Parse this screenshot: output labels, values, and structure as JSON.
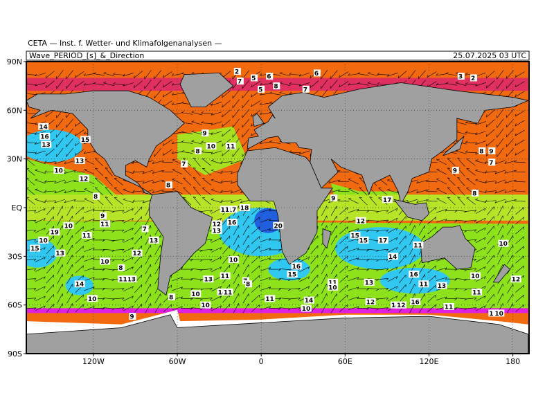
{
  "header": {
    "source": "CETA — Inst. f. Wetter- und Klimafolgenanalysen —",
    "title": "Wave_PERIOD_[s]_&_Direction",
    "date": "25.07.2025 03 UTC"
  },
  "map": {
    "xlim": [
      -168,
      191.6
    ],
    "ylim": [
      -90,
      90
    ],
    "xticks": [
      {
        "value": -120,
        "label": "120W"
      },
      {
        "value": -60,
        "label": "60W"
      },
      0,
      {
        "value": 60,
        "label": "60E"
      },
      {
        "value": 120,
        "label": "120E"
      },
      {
        "value": 180,
        "label": "180"
      }
    ],
    "yticks": [
      {
        "value": 90,
        "label": "90N"
      },
      {
        "value": 60,
        "label": "60N"
      },
      {
        "value": 30,
        "label": "30N"
      },
      {
        "value": 0,
        "label": "EQ"
      },
      {
        "value": -30,
        "label": "30S"
      },
      {
        "value": -60,
        "label": "60S"
      },
      {
        "value": -90,
        "label": "90S"
      }
    ],
    "labels": [
      {
        "lon": -157,
        "lat": 50,
        "value": 14
      },
      {
        "lon": -156,
        "lat": 44,
        "value": 16
      },
      {
        "lon": -155,
        "lat": 39,
        "value": 13
      },
      {
        "lon": -127,
        "lat": 42,
        "value": 15
      },
      {
        "lon": -146,
        "lat": 23,
        "value": 10
      },
      {
        "lon": -131,
        "lat": 29,
        "value": 13
      },
      {
        "lon": -128,
        "lat": 18,
        "value": 12
      },
      {
        "lon": -118,
        "lat": 7,
        "value": 8
      },
      {
        "lon": -139,
        "lat": -11,
        "value": 10
      },
      {
        "lon": -113,
        "lat": -5,
        "value": 9
      },
      {
        "lon": -113,
        "lat": -10,
        "value": 11
      },
      {
        "lon": -149,
        "lat": -15,
        "value": 19
      },
      {
        "lon": -157,
        "lat": -20,
        "value": 10
      },
      {
        "lon": -163,
        "lat": -25,
        "value": 15
      },
      {
        "lon": -145,
        "lat": -28,
        "value": 13
      },
      {
        "lon": -126,
        "lat": -17,
        "value": 11
      },
      {
        "lon": -113,
        "lat": -33,
        "value": 10
      },
      {
        "lon": -100,
        "lat": -37,
        "value": 8
      },
      {
        "lon": -94,
        "lat": -44,
        "value": 13
      },
      {
        "lon": -100,
        "lat": -44,
        "value": 11
      },
      {
        "lon": -90,
        "lat": -28,
        "value": 12
      },
      {
        "lon": -83,
        "lat": -13,
        "value": 7
      },
      {
        "lon": -78,
        "lat": -20,
        "value": 13
      },
      {
        "lon": -131,
        "lat": -47,
        "value": 14
      },
      {
        "lon": -122,
        "lat": -56,
        "value": 10
      },
      {
        "lon": -92,
        "lat": -67,
        "value": 9
      },
      {
        "lon": -64,
        "lat": -55,
        "value": 8
      },
      {
        "lon": -48,
        "lat": -53,
        "value": 10
      },
      {
        "lon": -41,
        "lat": -60,
        "value": 10
      },
      {
        "lon": -39,
        "lat": -44,
        "value": 13
      },
      {
        "lon": -27,
        "lat": -42,
        "value": 11
      },
      {
        "lon": -29,
        "lat": -52,
        "value": 14
      },
      {
        "lon": -25,
        "lat": -52,
        "value": 11
      },
      {
        "lon": -21,
        "lat": -32,
        "value": 10
      },
      {
        "lon": -11,
        "lat": -45,
        "value": 7
      },
      {
        "lon": -9,
        "lat": -47,
        "value": 8
      },
      {
        "lon": 5,
        "lat": -56,
        "value": 11
      },
      {
        "lon": 33,
        "lat": -57,
        "value": 14
      },
      {
        "lon": 31,
        "lat": -62,
        "value": 10
      },
      {
        "lon": 24,
        "lat": -36,
        "value": 16
      },
      {
        "lon": 21,
        "lat": -41,
        "value": 15
      },
      {
        "lon": 11,
        "lat": -11,
        "value": 20
      },
      {
        "lon": -13,
        "lat": 0,
        "value": 18
      },
      {
        "lon": -22,
        "lat": -1,
        "value": 17
      },
      {
        "lon": -27,
        "lat": -1,
        "value": 11
      },
      {
        "lon": -22,
        "lat": -9,
        "value": 16
      },
      {
        "lon": -33,
        "lat": -10,
        "value": 12
      },
      {
        "lon": -33,
        "lat": -14,
        "value": 13
      },
      {
        "lon": -40,
        "lat": 46,
        "value": 9
      },
      {
        "lon": -37,
        "lat": 38,
        "value": 10
      },
      {
        "lon": -23,
        "lat": 38,
        "value": 11
      },
      {
        "lon": -45,
        "lat": 35,
        "value": 8
      },
      {
        "lon": -55,
        "lat": 27,
        "value": 7
      },
      {
        "lon": -17,
        "lat": 84,
        "value": 2
      },
      {
        "lon": -15,
        "lat": 78,
        "value": 7
      },
      {
        "lon": -5,
        "lat": 80,
        "value": 5
      },
      {
        "lon": 0,
        "lat": 73,
        "value": 5
      },
      {
        "lon": 6,
        "lat": 81,
        "value": 6
      },
      {
        "lon": 11,
        "lat": 75,
        "value": 8
      },
      {
        "lon": 32,
        "lat": 73,
        "value": 7
      },
      {
        "lon": 40,
        "lat": 83,
        "value": 6
      },
      {
        "lon": 52,
        "lat": 6,
        "value": 9
      },
      {
        "lon": 89,
        "lat": 5,
        "value": 17
      },
      {
        "lon": 70,
        "lat": -8,
        "value": 12
      },
      {
        "lon": 66,
        "lat": -17,
        "value": 15
      },
      {
        "lon": 72,
        "lat": -20,
        "value": 15
      },
      {
        "lon": 86,
        "lat": -20,
        "value": 17
      },
      {
        "lon": 111,
        "lat": -23,
        "value": 11
      },
      {
        "lon": 93,
        "lat": -30,
        "value": 14
      },
      {
        "lon": 108,
        "lat": -41,
        "value": 16
      },
      {
        "lon": 76,
        "lat": -46,
        "value": 13
      },
      {
        "lon": 50,
        "lat": -46,
        "value": 11
      },
      {
        "lon": 50,
        "lat": -49,
        "value": 10
      },
      {
        "lon": 77,
        "lat": -58,
        "value": 12
      },
      {
        "lon": 95,
        "lat": -60,
        "value": 14
      },
      {
        "lon": 99,
        "lat": -60,
        "value": 12
      },
      {
        "lon": 109,
        "lat": -58,
        "value": 16
      },
      {
        "lon": 115,
        "lat": -47,
        "value": 11
      },
      {
        "lon": 128,
        "lat": -48,
        "value": 13
      },
      {
        "lon": 133,
        "lat": -61,
        "value": 11
      },
      {
        "lon": 153,
        "lat": -52,
        "value": 11
      },
      {
        "lon": 152,
        "lat": -42,
        "value": 10
      },
      {
        "lon": 172,
        "lat": -22,
        "value": 10
      },
      {
        "lon": 181,
        "lat": -44,
        "value": 12
      },
      {
        "lon": 165,
        "lat": -65,
        "value": 11
      },
      {
        "lon": 169,
        "lat": -65,
        "value": 10
      },
      {
        "lon": 139,
        "lat": 23,
        "value": 9
      },
      {
        "lon": 158,
        "lat": 35,
        "value": 8
      },
      {
        "lon": 165,
        "lat": 35,
        "value": 9
      },
      {
        "lon": 165,
        "lat": 28,
        "value": 7
      },
      {
        "lon": 153,
        "lat": 9,
        "value": 8
      },
      {
        "lon": 143,
        "lat": 81,
        "value": 3
      },
      {
        "lon": 152,
        "lat": 80,
        "value": 2
      },
      {
        "lon": -66,
        "lat": 14,
        "value": 8
      }
    ]
  }
}
